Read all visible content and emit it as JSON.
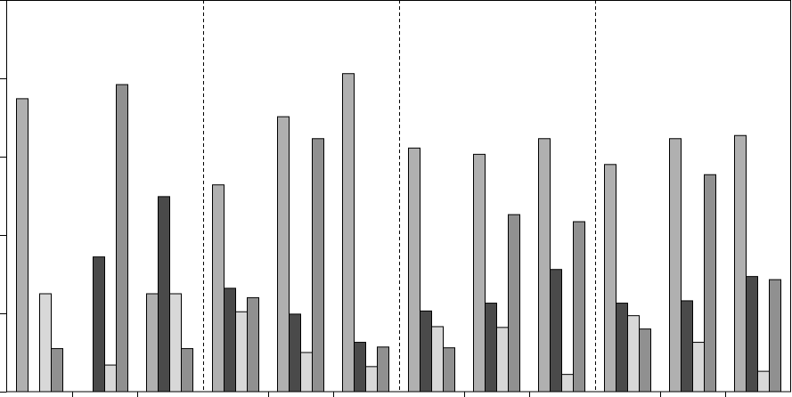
{
  "chart_data": {
    "type": "bar",
    "categories": [
      null,
      null,
      null,
      null,
      null,
      null,
      null,
      null,
      null,
      null,
      null,
      null
    ],
    "series": [
      {
        "color": "#b0b0b0",
        "values": [
          3.74,
          null,
          1.25,
          2.64,
          3.51,
          4.06,
          3.11,
          3.03,
          3.23,
          2.9,
          3.23,
          3.27
        ]
      },
      {
        "color": "#4a4a4a",
        "values": [
          null,
          1.72,
          2.49,
          1.32,
          0.99,
          0.63,
          1.03,
          1.13,
          1.56,
          1.13,
          1.16,
          1.47
        ]
      },
      {
        "color": "#d8d8d8",
        "values": [
          1.25,
          0.34,
          1.25,
          1.02,
          0.5,
          0.32,
          0.83,
          0.82,
          0.22,
          0.97,
          0.63,
          0.26
        ]
      },
      {
        "color": "#909090",
        "values": [
          0.55,
          3.92,
          0.55,
          1.2,
          3.23,
          0.57,
          0.56,
          2.26,
          2.17,
          0.8,
          2.77,
          1.43
        ]
      }
    ],
    "ylim": [
      0,
      5
    ],
    "yticks": [
      0,
      1,
      2,
      3,
      4,
      5
    ]
  }
}
